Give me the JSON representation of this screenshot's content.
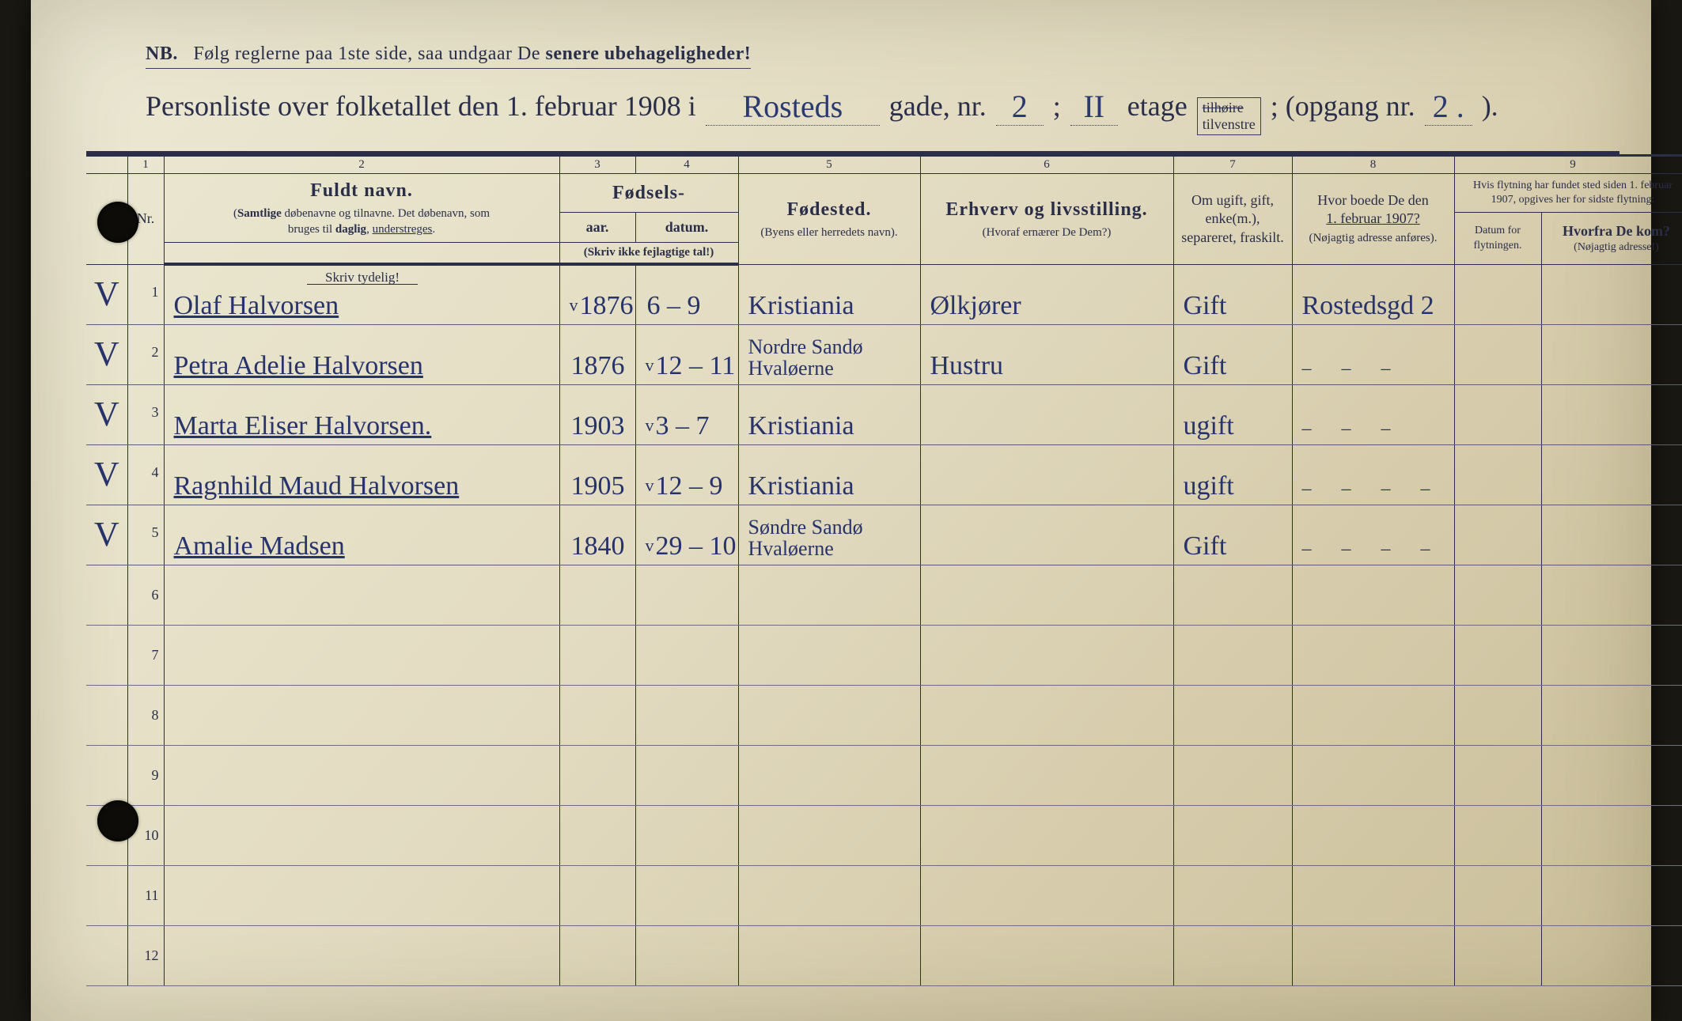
{
  "notice": {
    "nb": "NB.",
    "text_a": "Følg reglerne paa 1ste side, saa undgaar De ",
    "text_b": "senere ubehageligheder!"
  },
  "title": {
    "prefix": "Personliste over folketallet den 1. februar 1908 i",
    "street": "Rosteds",
    "t_gade": "gade, nr.",
    "house_nr": "2",
    "semi": ";",
    "floor": "II",
    "t_etage": "etage",
    "strike": "tilhøire",
    "tilvenstre": "tilvenstre",
    "sep2": "; (opgang nr.",
    "opgang": "2 .",
    "close": ")."
  },
  "colnums": {
    "c1": "1",
    "c2": "2",
    "c3": "3",
    "c4": "4",
    "c5": "5",
    "c6": "6",
    "c7": "7",
    "c8": "8",
    "c9": "9"
  },
  "headers": {
    "nr": "Nr.",
    "fuldt_navn": "Fuldt navn.",
    "name_sub": "(Samtlige døbenavne og tilnavne. Det døbenavn, som bruges til daglig, understreges.",
    "fodsels": "Fødsels-",
    "aar": "aar.",
    "datum": "datum.",
    "skriv_ikke": "(Skriv ikke fejlagtige tal!)",
    "fodested": "Fødested.",
    "fodested_sub": "(Byens eller herredets navn).",
    "erhverv": "Erhverv og livsstilling.",
    "erhverv_sub": "(Hvoraf ernærer De Dem?)",
    "ugift": "Om ugift, gift, enke(m.), separeret, fraskilt.",
    "feb1907_a": "Hvor boede De den",
    "feb1907_b": "1. februar 1907?",
    "feb1907_sub": "(Nøjagtig adresse anføres).",
    "flyt": "Hvis flytning har fundet sted siden 1. februar 1907, opgives her for sidste flytning:",
    "datum_flyt": "Datum for flytningen.",
    "hvorfra": "Hvorfra De kom?",
    "hvorfra_sub": "(Nøjagtig adresse!)",
    "skriv_tyd": "Skriv tydelig!"
  },
  "rows": [
    {
      "nr": "1",
      "mark": "V",
      "name": "Olaf Halvorsen",
      "yr_tick": "v",
      "year": "1876",
      "date": "6 – 9",
      "place": "Kristiania",
      "occ": "Ølkjører",
      "mar": "Gift",
      "y1907": "Rostedsgd 2",
      "dflt": "",
      "from": ""
    },
    {
      "nr": "2",
      "mark": "V",
      "name": "Petra Adelie Halvorsen",
      "yr_tick": "",
      "year": "1876",
      "date_tick": "v",
      "date": "12 – 11",
      "place": "Nordre Sandø Hvaløerne",
      "occ": "Hustru",
      "mar": "Gift",
      "y1907": "– – –",
      "dflt": "",
      "from": ""
    },
    {
      "nr": "3",
      "mark": "V",
      "name": "Marta Eliser Halvorsen.",
      "yr_tick": "",
      "year": "1903",
      "date_tick": "v",
      "date": "3 – 7",
      "place": "Kristiania",
      "occ": "",
      "mar": "ugift",
      "y1907": "– – –",
      "dflt": "",
      "from": ""
    },
    {
      "nr": "4",
      "mark": "V",
      "name": "Ragnhild Maud Halvorsen",
      "yr_tick": "",
      "year": "1905",
      "date_tick": "v",
      "date": "12 – 9",
      "place": "Kristiania",
      "occ": "",
      "mar": "ugift",
      "y1907": "–  –  – –",
      "dflt": "",
      "from": ""
    },
    {
      "nr": "5",
      "mark": "V",
      "name": "Amalie Madsen",
      "yr_tick": "",
      "year": "1840",
      "date_tick": "v",
      "date": "29 – 10",
      "place": "Søndre Sandø Hvaløerne",
      "occ": "",
      "mar": "Gift",
      "y1907": "–   – – –",
      "dflt": "",
      "from": ""
    }
  ],
  "empty_rows": [
    "6",
    "7",
    "8",
    "9",
    "10",
    "11",
    "12"
  ],
  "colors": {
    "ink": "#2a2e48",
    "handwriting": "#27336b",
    "paper_light": "#ece8d4",
    "paper_dark": "#c9bd98"
  }
}
